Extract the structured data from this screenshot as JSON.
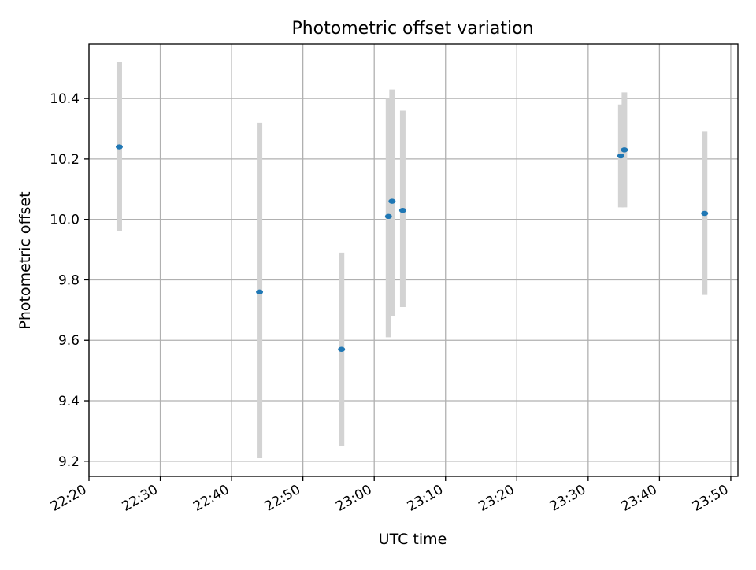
{
  "chart_data": {
    "type": "scatter",
    "title": "Photometric offset variation",
    "xlabel": "UTC time",
    "ylabel": "Photometric offset",
    "x_axis_type": "time",
    "xlim": [
      "22:20",
      "23:51"
    ],
    "ylim": [
      9.15,
      10.58
    ],
    "x_ticks": [
      "22:20",
      "22:30",
      "22:40",
      "22:50",
      "23:00",
      "23:10",
      "23:20",
      "23:30",
      "23:40",
      "23:50"
    ],
    "y_ticks": [
      "9.2",
      "9.4",
      "9.6",
      "9.8",
      "10.0",
      "10.2",
      "10.4"
    ],
    "grid": true,
    "legend": false,
    "colors": {
      "marker": "#1f77b4",
      "error_bar": "#d3d3d3",
      "grid": "#b0b0b0",
      "axis": "#000000"
    },
    "series": [
      {
        "points": [
          {
            "x": "22:24:15",
            "y": 10.24,
            "y_low": 9.96,
            "y_high": 10.52
          },
          {
            "x": "22:43:55",
            "y": 9.76,
            "y_low": 9.21,
            "y_high": 10.32
          },
          {
            "x": "22:55:25",
            "y": 9.57,
            "y_low": 9.25,
            "y_high": 9.89
          },
          {
            "x": "23:02:00",
            "y": 10.01,
            "y_low": 9.61,
            "y_high": 10.4
          },
          {
            "x": "23:02:30",
            "y": 10.06,
            "y_low": 9.68,
            "y_high": 10.43
          },
          {
            "x": "23:04:00",
            "y": 10.03,
            "y_low": 9.71,
            "y_high": 10.36
          },
          {
            "x": "23:34:35",
            "y": 10.21,
            "y_low": 10.04,
            "y_high": 10.38
          },
          {
            "x": "23:35:05",
            "y": 10.23,
            "y_low": 10.04,
            "y_high": 10.42
          },
          {
            "x": "23:46:20",
            "y": 10.02,
            "y_low": 9.75,
            "y_high": 10.29
          }
        ]
      }
    ]
  }
}
